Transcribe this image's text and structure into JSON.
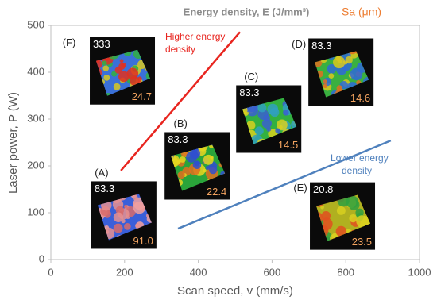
{
  "chart_data": {
    "type": "scatter",
    "x_label": "Scan speed, v (mm/s)",
    "y_label": "Laser power, P (W)",
    "legend_energy": "Energy density, E (J/mm³)",
    "legend_sa": "Sa (μm)",
    "xlim": [
      0,
      1000
    ],
    "xticks": [
      0,
      200,
      400,
      600,
      800,
      1000
    ],
    "ylim": [
      0,
      500
    ],
    "yticks": [
      0,
      100,
      200,
      300,
      400,
      500
    ],
    "samples": [
      {
        "label": "(A)",
        "x": 198,
        "y": 95,
        "energy": "83.3",
        "sa": "91.0"
      },
      {
        "label": "(B)",
        "x": 397,
        "y": 200,
        "energy": "83.3",
        "sa": "22.4"
      },
      {
        "label": "(C)",
        "x": 591,
        "y": 300,
        "energy": "83.3",
        "sa": "14.5"
      },
      {
        "label": "(D)",
        "x": 787,
        "y": 400,
        "energy": "83.3",
        "sa": "14.6"
      },
      {
        "label": "(E)",
        "x": 791,
        "y": 93,
        "energy": "20.8",
        "sa": "23.5"
      },
      {
        "label": "(F)",
        "x": 194,
        "y": 403,
        "energy": "333",
        "sa": "24.7"
      }
    ],
    "trend_lines": [
      {
        "name": "Higher energy density",
        "color": "#e8251f",
        "x": [
          190,
          513
        ],
        "y": [
          190,
          486
        ]
      },
      {
        "name": "Lower energy density",
        "color": "#4f81bd",
        "x": [
          345,
          922
        ],
        "y": [
          66,
          254
        ]
      }
    ]
  }
}
